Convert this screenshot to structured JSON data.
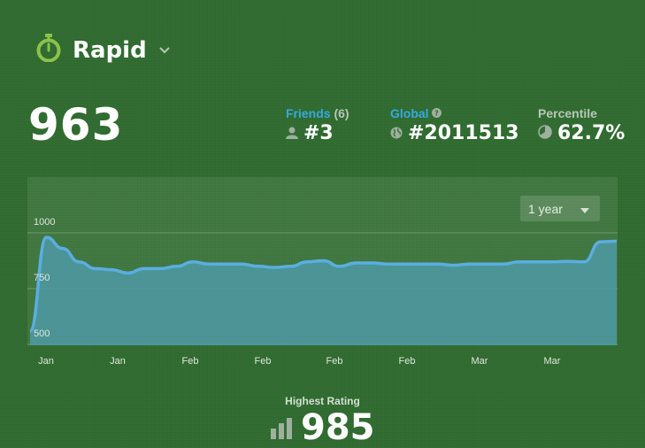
{
  "header": {
    "mode_title": "Rapid"
  },
  "rating": "963",
  "stats": {
    "friends_label": "Friends",
    "friends_count": "(6)",
    "friends_rank": "#3",
    "global_label": "Global",
    "global_rank": "#2011513",
    "percentile_label": "Percentile",
    "percentile_value": "62.7%"
  },
  "range_select": {
    "value": "1 year"
  },
  "chart_data": {
    "type": "area",
    "y_ticks": [
      "1000",
      "750",
      "500"
    ],
    "x_tick_labels": [
      "Jan",
      "Jan",
      "Feb",
      "Feb",
      "Feb",
      "Feb",
      "Mar",
      "Mar"
    ],
    "ylim": [
      500,
      1000
    ],
    "values": [
      560,
      980,
      930,
      870,
      840,
      835,
      820,
      840,
      840,
      850,
      870,
      860,
      860,
      860,
      850,
      845,
      850,
      870,
      875,
      850,
      865,
      865,
      860,
      860,
      860,
      860,
      855,
      860,
      860,
      860,
      870,
      870,
      870,
      872,
      870,
      960,
      963
    ],
    "colors": {
      "line": "#5aaee0",
      "fill": "#4d9aa6"
    }
  },
  "highest": {
    "label": "Highest Rating",
    "value": "985"
  }
}
